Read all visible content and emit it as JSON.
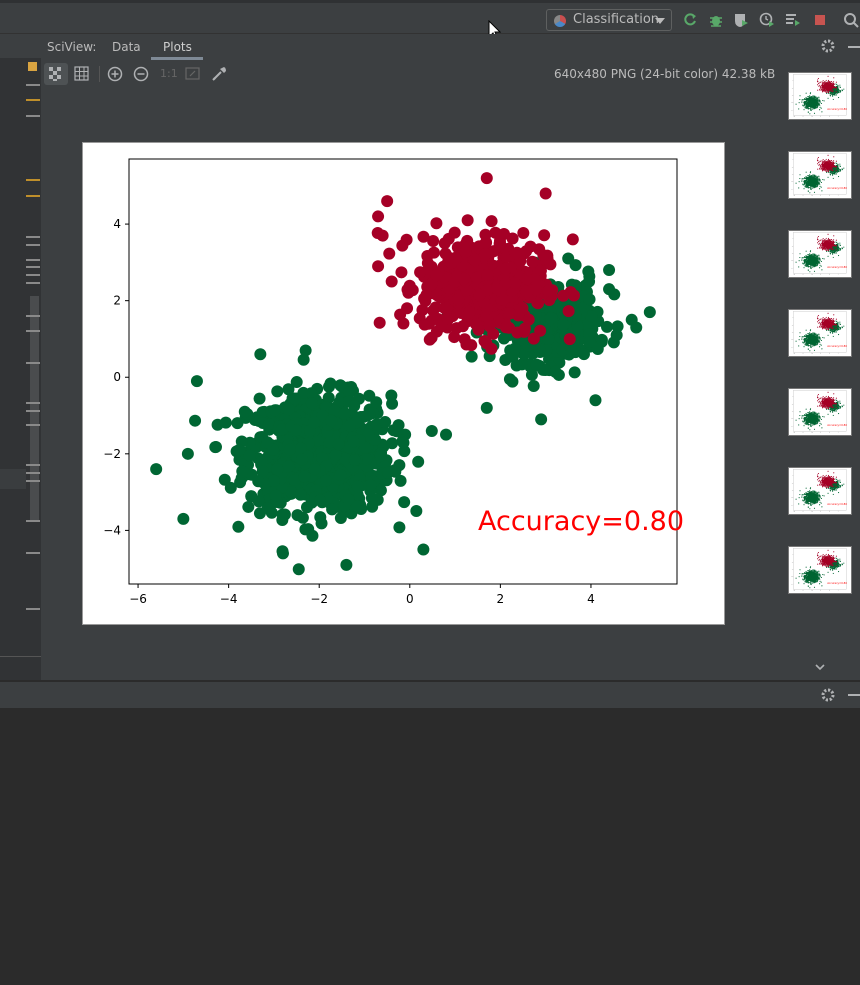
{
  "toolbar": {
    "run_config_label": "Classification",
    "icons": [
      "rerun-icon",
      "debug-icon",
      "coverage-icon",
      "profile-icon",
      "concurrency-icon",
      "stop-icon",
      "search-icon"
    ]
  },
  "sciview": {
    "label": "SciView:",
    "tabs": [
      {
        "label": "Data"
      },
      {
        "label": "Plots",
        "active": true
      }
    ],
    "image_info": "640x480 PNG (24-bit color) 42.38 kB",
    "zoom_actual_label": "1:1"
  },
  "colors": {
    "class_a": "#006633",
    "class_b": "#a50026",
    "accuracy_text": "#ff0000"
  },
  "chart_data": {
    "type": "scatter",
    "title": "",
    "xlabel": "",
    "ylabel": "",
    "xlim": [
      -6.2,
      5.9
    ],
    "ylim": [
      -5.4,
      5.7
    ],
    "xticks": [
      -6,
      -4,
      -2,
      0,
      2,
      4
    ],
    "yticks": [
      -4,
      -2,
      0,
      2,
      4
    ],
    "annotation": "Accuracy=0.80",
    "series": [
      {
        "center": [
          -2.0,
          -2.0
        ],
        "spread": 0.75,
        "outliers": [
          [
            -5.6,
            -2.4
          ],
          [
            -5.0,
            -3.7
          ],
          [
            -4.7,
            -0.1
          ],
          [
            -1.4,
            -4.9
          ],
          [
            0.3,
            -4.5
          ],
          [
            0.8,
            -1.5
          ],
          [
            -2.8,
            -4.6
          ],
          [
            -4.9,
            -2.0
          ],
          [
            -3.3,
            0.6
          ],
          [
            -2.3,
            0.7
          ]
        ]
      },
      {
        "center": [
          3.0,
          1.5
        ],
        "spread": 0.55,
        "outliers": [
          [
            5.3,
            1.7
          ],
          [
            4.9,
            1.5
          ],
          [
            4.1,
            -0.6
          ],
          [
            2.9,
            -1.1
          ],
          [
            1.7,
            -0.8
          ],
          [
            4.4,
            2.3
          ],
          [
            4.4,
            2.8
          ],
          [
            5.0,
            1.3
          ]
        ]
      },
      {
        "center": [
          1.6,
          2.4
        ],
        "spread": 0.65,
        "outliers": [
          [
            1.7,
            5.2
          ],
          [
            -0.5,
            4.6
          ],
          [
            -0.7,
            4.2
          ],
          [
            -0.6,
            3.7
          ],
          [
            3.0,
            4.8
          ],
          [
            -0.7,
            2.9
          ],
          [
            -0.4,
            2.5
          ],
          [
            3.6,
            3.6
          ]
        ]
      }
    ]
  }
}
